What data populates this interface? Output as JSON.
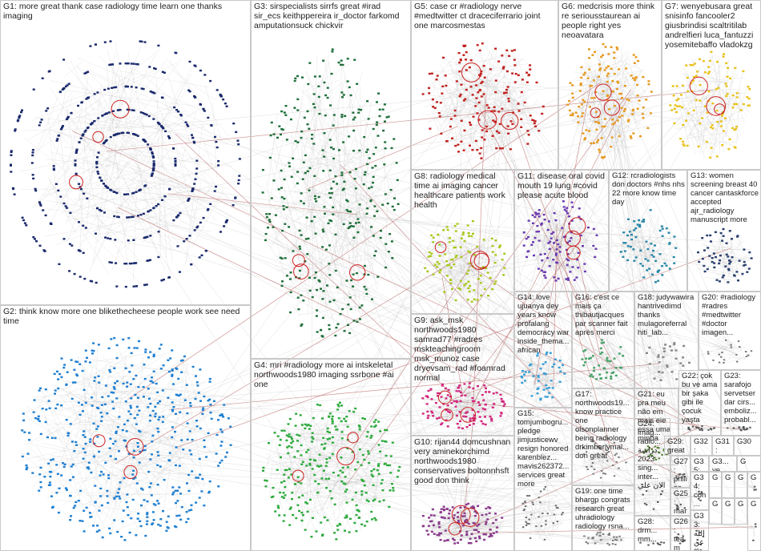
{
  "graph": {
    "groups": [
      {
        "id": "G1",
        "label": "G1: more great thank case radiology time learn one thanks imaging",
        "color": "#1a2a6c",
        "nodes": 520
      },
      {
        "id": "G2",
        "label": "G2: think know more one blikethecheese people work see need time",
        "color": "#1f7fd0",
        "nodes": 520
      },
      {
        "id": "G3",
        "label": "G3: sirspecialists sirrfs great #irad sir_ecs keithppereira ir_doctor farkomd amputationsuck chickvir",
        "color": "#1f6e3a",
        "nodes": 340
      },
      {
        "id": "G4",
        "label": "G4: mri #radiology more ai intskeletal northwoods1980 imaging ssrbone #ai one",
        "color": "#2eaa3e",
        "nodes": 300
      },
      {
        "id": "G5",
        "label": "G5: case cr #radiology nerve #medtwitter ct draceciferrario joint one marcosmestas",
        "color": "#c0221f",
        "nodes": 170
      },
      {
        "id": "G6",
        "label": "G6: medcrisis more think re seriousstaurean ai people right yes neoavatara",
        "color": "#e69a22",
        "nodes": 150
      },
      {
        "id": "G7",
        "label": "G7: wenyebusara great snisinfo fancooler2 giusbrindisi scaltritilab andrelfieri luca_fantuzzi yosemitebaffo vladokzg",
        "color": "#e8c21b",
        "nodes": 110
      },
      {
        "id": "G8",
        "label": "G8: radiology medical time ai imaging cancer healthcare patients work health",
        "color": "#a8c81e",
        "nodes": 110
      },
      {
        "id": "G9",
        "label": "G9: ask_msk northwoods1980 samrad77 #radres mskteachingroom msk_munoz case dryevsam_rad #foamrad normal",
        "color": "#d2287f",
        "nodes": 120
      },
      {
        "id": "G10",
        "label": "G10: rijan44 domcushnan very aminekorchimd northwoods1980 conservatives boltonnhsft good don think",
        "color": "#8a3a8c",
        "nodes": 120
      },
      {
        "id": "G11",
        "label": "G11: disease oral covid mouth 19 lung #covid please acute blood",
        "color": "#6a3ab0",
        "nodes": 110
      },
      {
        "id": "G12",
        "label": "G12: rcradiologists don doctors #nhs nhs 22 more know time day",
        "color": "#2b87a8",
        "nodes": 70
      },
      {
        "id": "G13",
        "label": "G13: women screening breast 40 cancer cantaskforce accepted ajr_radiology manuscript more",
        "color": "#2a3f6f",
        "nodes": 60
      },
      {
        "id": "G14",
        "label": "G14: love ujuanya dey years know profalang democracy war inside_thema... african",
        "color": "#3a9fd6",
        "nodes": 50
      },
      {
        "id": "G15",
        "label": "G15: tomjumbogru... pledge jimjusticewv resign honored karenblez... mavis262372... services great more",
        "color": "#6a6a6a",
        "nodes": 40
      },
      {
        "id": "G16",
        "label": "G16: c'est ce mais ça thibautjacques par scanner fait après merci",
        "color": "#4aa36a",
        "nodes": 45
      },
      {
        "id": "G17",
        "label": "G17: northwoods19... know practice one olsonplanner being radiology drkimberlymal... don great",
        "color": "#777777",
        "nodes": 35
      },
      {
        "id": "G18",
        "label": "G18: judywawira hantrivedimd thanks mulagoreferral hiti_lab...",
        "color": "#888888",
        "nodes": 30
      },
      {
        "id": "G19",
        "label": "G19: one time bhargp congrats research great uhradiology radiology rsna...",
        "color": "#777777",
        "nodes": 30
      },
      {
        "id": "G20",
        "label": "G20: #radiology #radres #medtwitter #doctor imagen...",
        "color": "#777777",
        "nodes": 20
      },
      {
        "id": "G21",
        "label": "G21: eu pra meu não em mais ele essa uma minha",
        "color": "#4a7a2a",
        "nodes": 25
      },
      {
        "id": "G22",
        "label": "G22: çok bu ve ama bir şaka gibi ile çocuk yaşta",
        "color": "#555555",
        "nodes": 18
      },
      {
        "id": "G23",
        "label": "G23: sarafojo servetserdar cirs... emboliz... probabl...",
        "color": "#555555",
        "nodes": 15
      },
      {
        "id": "G24",
        "label": "G24: imag... radio... دراسة 2023 sing... inter... الان علي",
        "color": "#555555",
        "nodes": 12
      },
      {
        "id": "G25",
        "label": "G25: mar... non...",
        "color": "#555555",
        "nodes": 8
      },
      {
        "id": "G26",
        "label": "G26: team mri...",
        "color": "#555555",
        "nodes": 8
      },
      {
        "id": "G27",
        "label": "G27: philips healt...",
        "color": "#555555",
        "nodes": 8
      },
      {
        "id": "G28",
        "label": "G28: drm... mm...",
        "color": "#555555",
        "nodes": 8
      },
      {
        "id": "G29",
        "label": "G29: great job",
        "color": "#555555",
        "nodes": 8
      },
      {
        "id": "G30",
        "label": "G30",
        "color": "#555555",
        "nodes": 6
      },
      {
        "id": "G31",
        "label": "G31: #rdi... 零 零",
        "color": "#555555",
        "nodes": 6
      },
      {
        "id": "G32",
        "label": "G32: pers... som...",
        "color": "#555555",
        "nodes": 6
      },
      {
        "id": "G33",
        "label": "G33: الله عن #ir...",
        "color": "#555555",
        "nodes": 6
      },
      {
        "id": "G34",
        "label": "G34: con...",
        "color": "#555555",
        "nodes": 6
      },
      {
        "id": "G35",
        "label": "G35: ho...",
        "color": "#555555",
        "nodes": 5
      },
      {
        "id": "G3x",
        "label": "G3... ye...",
        "color": "#555555",
        "nodes": 5
      },
      {
        "id": "Gx1",
        "label": "G",
        "color": "#555555",
        "nodes": 3
      },
      {
        "id": "Gx2",
        "label": "G",
        "color": "#555555",
        "nodes": 3
      },
      {
        "id": "Gx3",
        "label": "G",
        "color": "#555555",
        "nodes": 3
      },
      {
        "id": "Gx4",
        "label": "G",
        "color": "#555555",
        "nodes": 3
      },
      {
        "id": "Gx5",
        "label": "G",
        "color": "#555555",
        "nodes": 3
      },
      {
        "id": "Gx6",
        "label": "G",
        "color": "#555555",
        "nodes": 3
      },
      {
        "id": "Gx7",
        "label": "G",
        "color": "#555555",
        "nodes": 3
      },
      {
        "id": "Gx8",
        "label": "G",
        "color": "#555555",
        "nodes": 3
      },
      {
        "id": "Gx9",
        "label": "G",
        "color": "#555555",
        "nodes": 3
      }
    ],
    "edge_color": "#b5b5b5",
    "bridge_color": "#b05050"
  }
}
